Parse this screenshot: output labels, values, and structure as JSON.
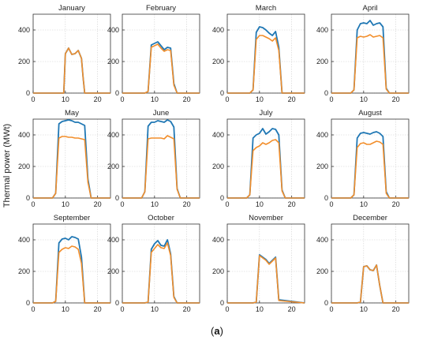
{
  "figure": {
    "ylabel": "Thermal power (MWt)",
    "caption_open": "(",
    "caption_letter": "a",
    "caption_close": ")"
  },
  "chart_data": {
    "type": "line",
    "colors": {
      "series_1": "#1f77b4",
      "series_2": "#f28e2b",
      "grid": "#d0d0d0"
    },
    "xlim": [
      0,
      24
    ],
    "ylim": [
      0,
      500
    ],
    "xticks": [
      0,
      10,
      20
    ],
    "yticks": [
      0,
      200,
      400
    ],
    "grid": true,
    "panels": [
      {
        "title": "January",
        "x": [
          0,
          8,
          9,
          9.5,
          10,
          11,
          12,
          13,
          14,
          15,
          15.5,
          16,
          24
        ],
        "s1": [
          0,
          0,
          0,
          0,
          250,
          285,
          245,
          250,
          270,
          220,
          100,
          0,
          0
        ],
        "s2": [
          0,
          0,
          0,
          0,
          250,
          285,
          245,
          250,
          270,
          220,
          100,
          0,
          0
        ]
      },
      {
        "title": "February",
        "x": [
          0,
          7,
          8,
          9,
          10,
          11,
          12,
          13,
          14,
          15,
          16,
          17,
          24
        ],
        "s1": [
          0,
          0,
          10,
          305,
          315,
          325,
          300,
          275,
          290,
          285,
          60,
          0,
          0
        ],
        "s2": [
          0,
          0,
          10,
          290,
          300,
          310,
          285,
          265,
          275,
          270,
          50,
          0,
          0
        ]
      },
      {
        "title": "March",
        "x": [
          0,
          7,
          8,
          9,
          10,
          11,
          12,
          13,
          14,
          15,
          16,
          17,
          24
        ],
        "s1": [
          0,
          0,
          20,
          385,
          420,
          415,
          400,
          380,
          365,
          390,
          290,
          0,
          0
        ],
        "s2": [
          0,
          0,
          20,
          340,
          365,
          365,
          355,
          345,
          330,
          350,
          270,
          0,
          0
        ]
      },
      {
        "title": "April",
        "x": [
          0,
          6,
          7,
          8,
          9,
          10,
          11,
          12,
          13,
          14,
          15,
          16,
          17,
          18,
          24
        ],
        "s1": [
          0,
          0,
          20,
          400,
          440,
          445,
          440,
          460,
          430,
          440,
          445,
          420,
          30,
          0,
          0
        ],
        "s2": [
          0,
          0,
          20,
          350,
          360,
          355,
          360,
          370,
          355,
          360,
          365,
          350,
          25,
          0,
          0
        ]
      },
      {
        "title": "May",
        "x": [
          0,
          6,
          7,
          8,
          9,
          10,
          11,
          12,
          13,
          14,
          15,
          16,
          17,
          18,
          24
        ],
        "s1": [
          0,
          0,
          30,
          470,
          485,
          490,
          495,
          490,
          480,
          480,
          470,
          460,
          120,
          0,
          0
        ],
        "s2": [
          0,
          0,
          30,
          380,
          390,
          390,
          385,
          385,
          380,
          380,
          375,
          370,
          100,
          0,
          0
        ]
      },
      {
        "title": "June",
        "x": [
          0,
          6,
          7,
          8,
          9,
          10,
          11,
          12,
          13,
          14,
          15,
          16,
          17,
          18,
          24
        ],
        "s1": [
          0,
          0,
          40,
          455,
          480,
          480,
          490,
          485,
          480,
          495,
          485,
          450,
          60,
          0,
          0
        ],
        "s2": [
          0,
          0,
          40,
          375,
          380,
          380,
          380,
          380,
          375,
          395,
          385,
          375,
          55,
          0,
          0
        ]
      },
      {
        "title": "July",
        "x": [
          0,
          6,
          7,
          8,
          9,
          10,
          11,
          12,
          13,
          14,
          15,
          16,
          17,
          18,
          24
        ],
        "s1": [
          0,
          0,
          20,
          380,
          400,
          410,
          440,
          405,
          420,
          440,
          435,
          400,
          50,
          0,
          0
        ],
        "s2": [
          0,
          0,
          20,
          300,
          320,
          330,
          350,
          340,
          350,
          365,
          370,
          350,
          45,
          0,
          0
        ]
      },
      {
        "title": "August",
        "x": [
          0,
          6,
          7,
          8,
          9,
          10,
          11,
          12,
          13,
          14,
          15,
          16,
          17,
          18,
          24
        ],
        "s1": [
          0,
          0,
          20,
          380,
          410,
          415,
          410,
          405,
          415,
          420,
          410,
          390,
          40,
          0,
          0
        ],
        "s2": [
          0,
          0,
          20,
          320,
          345,
          350,
          340,
          340,
          350,
          360,
          355,
          340,
          30,
          0,
          0
        ]
      },
      {
        "title": "September",
        "x": [
          0,
          6,
          7,
          8,
          9,
          10,
          11,
          12,
          13,
          14,
          15,
          16,
          17,
          24
        ],
        "s1": [
          0,
          0,
          10,
          380,
          405,
          410,
          400,
          420,
          415,
          405,
          290,
          0,
          0,
          0
        ],
        "s2": [
          0,
          0,
          10,
          320,
          340,
          350,
          345,
          360,
          355,
          340,
          250,
          0,
          0,
          0
        ]
      },
      {
        "title": "October",
        "x": [
          0,
          7,
          8,
          9,
          10,
          11,
          12,
          13,
          14,
          15,
          16,
          17,
          24
        ],
        "s1": [
          0,
          0,
          5,
          340,
          375,
          395,
          365,
          360,
          400,
          310,
          40,
          0,
          0
        ],
        "s2": [
          0,
          0,
          5,
          320,
          345,
          370,
          350,
          345,
          380,
          300,
          35,
          0,
          0
        ]
      },
      {
        "title": "November",
        "x": [
          0,
          8,
          9,
          10,
          11,
          12,
          13,
          14,
          15,
          16,
          24
        ],
        "s1": [
          0,
          0,
          5,
          305,
          290,
          275,
          250,
          270,
          290,
          20,
          0
        ],
        "s2": [
          0,
          0,
          5,
          300,
          285,
          270,
          245,
          265,
          285,
          15,
          0
        ]
      },
      {
        "title": "December",
        "x": [
          0,
          8,
          9,
          10,
          11,
          12,
          13,
          14,
          15,
          16,
          24
        ],
        "s1": [
          0,
          0,
          5,
          230,
          235,
          210,
          205,
          240,
          110,
          0,
          0
        ],
        "s2": [
          0,
          0,
          5,
          230,
          235,
          210,
          205,
          240,
          110,
          0,
          0
        ]
      }
    ]
  }
}
